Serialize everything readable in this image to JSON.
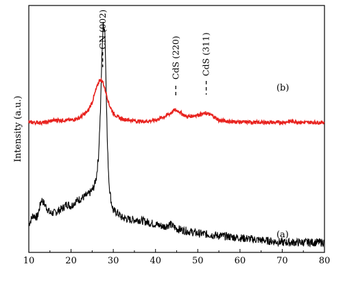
{
  "chart_data": {
    "type": "line",
    "title": "",
    "xlabel": "",
    "ylabel": "Intensity (a.u.)",
    "xlim": [
      10,
      80
    ],
    "x_ticks": [
      10,
      20,
      30,
      40,
      50,
      60,
      70,
      80
    ],
    "y_ticks_shown": false,
    "grid": false,
    "legend": "none",
    "colors": {
      "a": "#000000",
      "b": "#e8231f"
    },
    "series": [
      {
        "name": "(a)",
        "color": "#000000",
        "x": [
          10,
          11,
          12,
          13,
          14,
          15,
          16,
          17,
          18,
          19,
          20,
          21,
          22,
          23,
          24,
          25,
          25.5,
          26,
          26.5,
          27,
          27.3,
          27.6,
          28,
          28.3,
          28.6,
          29,
          29.5,
          30,
          31,
          32,
          34,
          36,
          38,
          40,
          42,
          43.5,
          45,
          50,
          55,
          60,
          65,
          70,
          75,
          80
        ],
        "y": [
          0.1,
          0.14,
          0.13,
          0.21,
          0.18,
          0.15,
          0.15,
          0.16,
          0.17,
          0.19,
          0.18,
          0.2,
          0.21,
          0.22,
          0.23,
          0.25,
          0.27,
          0.31,
          0.4,
          0.62,
          0.85,
          0.98,
          0.96,
          0.72,
          0.45,
          0.28,
          0.2,
          0.16,
          0.15,
          0.13,
          0.12,
          0.12,
          0.11,
          0.1,
          0.09,
          0.1,
          0.08,
          0.06,
          0.05,
          0.04,
          0.03,
          0.02,
          0.02,
          0.02
        ]
      },
      {
        "name": "(b)",
        "color": "#e8231f",
        "x": [
          10,
          12,
          14,
          16,
          18,
          20,
          22,
          24,
          25,
          26,
          26.8,
          27.5,
          28.3,
          29,
          30,
          31,
          32,
          34,
          36,
          38,
          40,
          42,
          43.5,
          44.5,
          45.5,
          46.5,
          47.5,
          49,
          50.5,
          52,
          53.5,
          55,
          57,
          60,
          65,
          70,
          72,
          75,
          80
        ],
        "y": [
          0.55,
          0.55,
          0.55,
          0.56,
          0.56,
          0.56,
          0.57,
          0.6,
          0.64,
          0.7,
          0.74,
          0.73,
          0.68,
          0.63,
          0.59,
          0.575,
          0.565,
          0.56,
          0.555,
          0.555,
          0.56,
          0.575,
          0.59,
          0.605,
          0.6,
          0.585,
          0.575,
          0.58,
          0.585,
          0.59,
          0.58,
          0.56,
          0.555,
          0.552,
          0.55,
          0.55,
          0.555,
          0.55,
          0.55
        ]
      }
    ],
    "annotations": [
      {
        "text": "CN (002)",
        "x": 27.5
      },
      {
        "text": "CdS (220)",
        "x": 44.8
      },
      {
        "text": "CdS (311)",
        "x": 52
      }
    ],
    "series_labels": [
      {
        "text": "(b)",
        "x": 67
      },
      {
        "text": "(a)",
        "x": 67
      }
    ]
  }
}
